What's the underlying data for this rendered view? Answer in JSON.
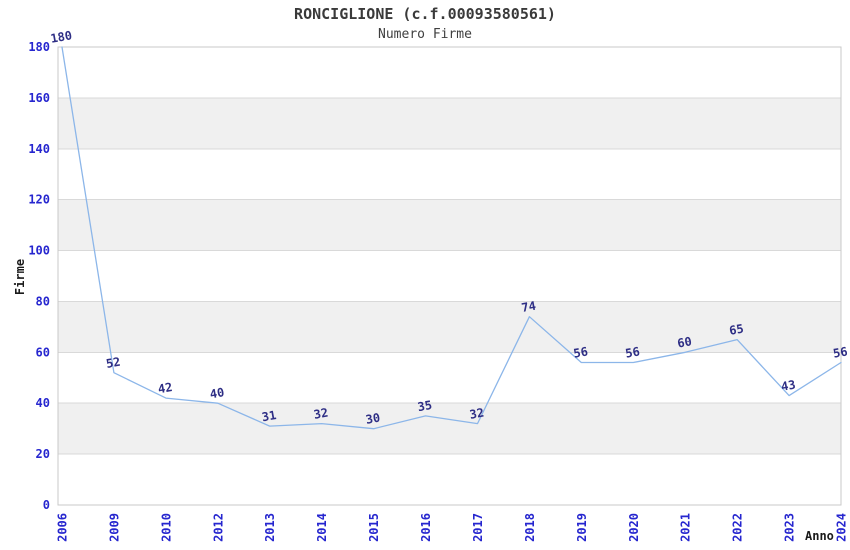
{
  "chart_data": {
    "type": "line",
    "title": "RONCIGLIONE (c.f.00093580561)",
    "subtitle": "Numero Firme",
    "xlabel": "Anno",
    "ylabel": "Firme",
    "categories": [
      "2006",
      "2009",
      "2010",
      "2012",
      "2013",
      "2014",
      "2015",
      "2016",
      "2017",
      "2018",
      "2019",
      "2020",
      "2021",
      "2022",
      "2023",
      "2024"
    ],
    "values": [
      180,
      52,
      42,
      40,
      31,
      32,
      30,
      35,
      32,
      74,
      56,
      56,
      60,
      65,
      43,
      56
    ],
    "ylim": [
      0,
      180
    ],
    "ytick_step": 20,
    "grid": true,
    "banded_background": true,
    "legend_position": "none",
    "colors": {
      "line": "#8cb6e9",
      "tick_labels": "#2626cf",
      "value_labels": "#2e2e85",
      "band": "#f0f0f0",
      "gridline": "#d9d9d9",
      "plot_border": "#c9c9c9",
      "title": "#3a3a3a",
      "background": "#ffffff"
    }
  }
}
